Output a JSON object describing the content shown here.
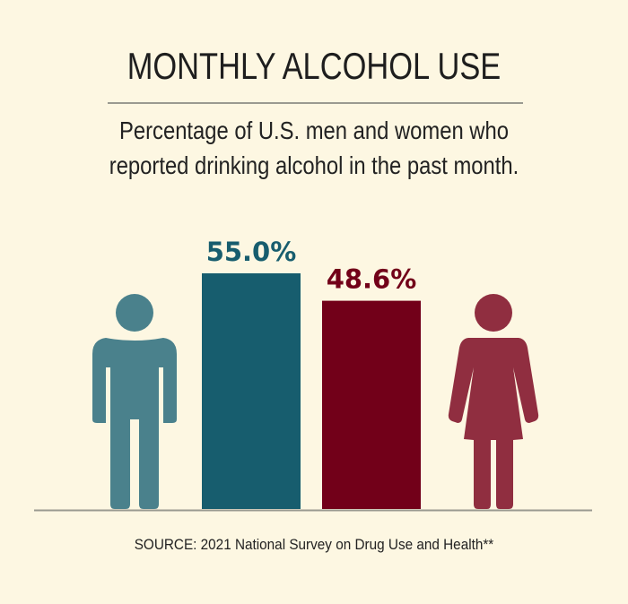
{
  "title": "MONTHLY ALCOHOL USE",
  "subtitle": [
    "Percentage of U.S. men and women who",
    "reported drinking alcohol in the past month."
  ],
  "source": "SOURCE: 2021 National Survey on Drug Use and Health**",
  "icons": {
    "left": "man-icon",
    "right": "woman-icon"
  },
  "chart_data": {
    "type": "bar",
    "categories": [
      "Men",
      "Women"
    ],
    "values": [
      55.0,
      48.6
    ],
    "data_labels": [
      "55.0%",
      "48.6%"
    ],
    "colors": [
      "#175d6e",
      "#720019"
    ],
    "icon_colors": [
      "#4a818c",
      "#902e40"
    ],
    "ylim": [
      0,
      55
    ],
    "grid": false,
    "legend": "none"
  }
}
